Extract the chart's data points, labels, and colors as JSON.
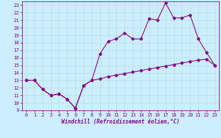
{
  "xlabel": "Windchill (Refroidissement éolien,°C)",
  "bg_color": "#cceeff",
  "grid_color": "#aadddd",
  "line_color": "#880088",
  "line1_y": [
    13,
    13,
    11.8,
    11,
    11.2,
    10.5,
    9.3,
    12.3,
    13,
    16.5,
    18.2,
    18.5,
    19.3,
    18.5,
    18.5,
    21.2,
    21.0,
    23.3,
    21.3,
    21.3,
    21.7,
    18.5,
    16.7,
    15.0
  ],
  "line2_y": [
    13,
    13,
    11.8,
    11,
    11.2,
    10.5,
    9.3,
    12.3,
    13,
    13.2,
    13.5,
    13.7,
    13.9,
    14.1,
    14.3,
    14.5,
    14.7,
    14.9,
    15.1,
    15.3,
    15.5,
    15.7,
    15.8,
    15.0
  ],
  "xlim": [
    -0.5,
    23.5
  ],
  "ylim": [
    9,
    23.5
  ],
  "yticks": [
    9,
    10,
    11,
    12,
    13,
    14,
    15,
    16,
    17,
    18,
    19,
    20,
    21,
    22,
    23
  ],
  "xticks": [
    0,
    1,
    2,
    3,
    4,
    5,
    6,
    7,
    8,
    9,
    10,
    11,
    12,
    13,
    14,
    15,
    16,
    17,
    18,
    19,
    20,
    21,
    22,
    23
  ],
  "tick_labelsize": 5,
  "xlabel_fontsize": 5.5,
  "marker_size": 2.0,
  "linewidth": 0.8
}
